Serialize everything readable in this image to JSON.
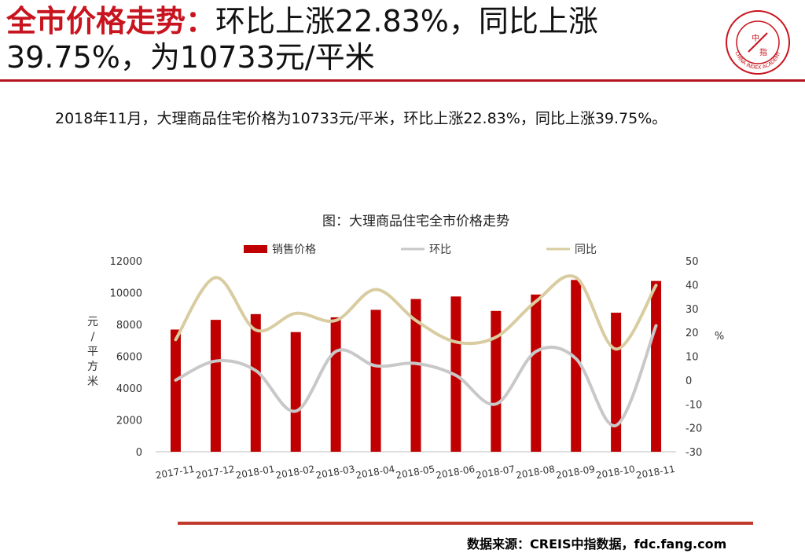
{
  "header": {
    "title_red": "全市价格走势：",
    "title_black_line1": "环比上涨22.83%，同比上涨",
    "title_line2": "39.75%，为10733元/平米"
  },
  "logo": {
    "icon": "china-index-academy-seal-icon",
    "text": "CHINA INDEX ACADEMY",
    "inner_glyph_top": "中",
    "inner_glyph_bottom": "指"
  },
  "summary": "2018年11月，大理商品住宅价格为10733元/平米，环比上涨22.83%，同比上涨39.75%。",
  "source": "数据来源：CREIS中指数据，fdc.fang.com",
  "colors": {
    "accent": "#c8141e",
    "bar": "#c00000",
    "mom_line": "#c8c8c8",
    "yoy_line": "#d8cca0"
  },
  "chart_data": {
    "type": "bar",
    "title": "图：大理商品住宅全市价格走势",
    "categories": [
      "2017-11",
      "2017-12",
      "2018-01",
      "2018-02",
      "2018-03",
      "2018-04",
      "2018-05",
      "2018-06",
      "2018-07",
      "2018-08",
      "2018-09",
      "2018-10",
      "2018-11"
    ],
    "series": [
      {
        "name": "销售价格",
        "type": "bar",
        "axis": "left",
        "values": [
          7680,
          8290,
          8650,
          7520,
          8450,
          8920,
          9600,
          9760,
          8850,
          9880,
          10800,
          8740,
          10733
        ]
      },
      {
        "name": "环比",
        "type": "line",
        "axis": "right",
        "values": [
          0,
          8,
          4,
          -13,
          12,
          6,
          7,
          2,
          -10,
          12,
          9,
          -19,
          22.83
        ]
      },
      {
        "name": "同比",
        "type": "line",
        "axis": "right",
        "values": [
          17,
          43,
          21,
          28,
          25,
          38,
          25,
          16,
          18,
          33,
          43,
          13,
          39.75
        ]
      }
    ],
    "ylabel": "元/平方米",
    "ylim": [
      0,
      12000
    ],
    "yticks": [
      "0",
      "2000",
      "4000",
      "6000",
      "8000",
      "10000",
      "12000"
    ],
    "y2label": "%",
    "y2lim": [
      -30,
      50
    ],
    "y2ticks": [
      "-30",
      "-20",
      "-10",
      "0",
      "10",
      "20",
      "30",
      "40",
      "50"
    ],
    "grid": false,
    "legend": "top"
  }
}
